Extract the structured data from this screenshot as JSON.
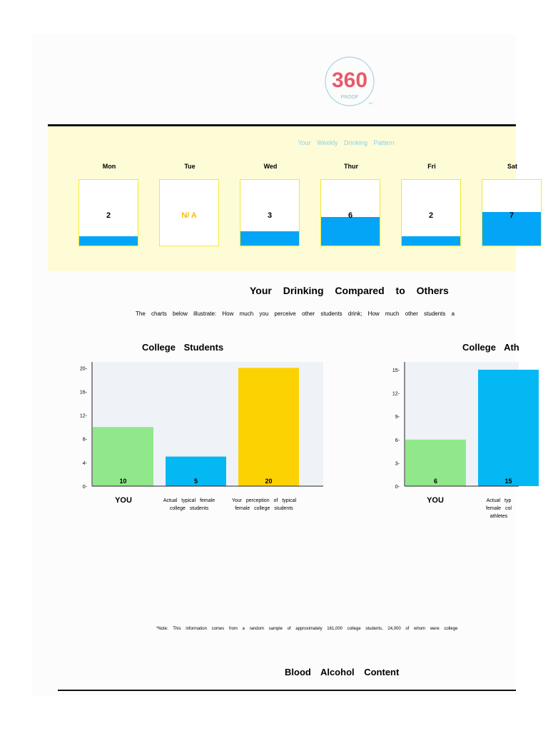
{
  "logo": {
    "text": "360",
    "subtext": "PROOF",
    "tm": "TM",
    "colors": [
      "#e85a6a",
      "#5ac4c4",
      "#a8d4e6"
    ]
  },
  "weekly": {
    "title": "Your Weekly Drinking Pattern",
    "max": 7,
    "days": [
      {
        "label": "Mon",
        "value": 2,
        "display": "2"
      },
      {
        "label": "Tue",
        "value": null,
        "display": "N/ A"
      },
      {
        "label": "Wed",
        "value": 3,
        "display": "3"
      },
      {
        "label": "Thur",
        "value": 6,
        "display": "6"
      },
      {
        "label": "Fri",
        "value": 2,
        "display": "2"
      },
      {
        "label": "Sat",
        "value": 7,
        "display": "7"
      }
    ]
  },
  "compare": {
    "title": "Your Drinking Compared to Others",
    "description": "The charts below illustrate: How much you perceive other students drink; How much other students a"
  },
  "chart_data": [
    {
      "type": "bar",
      "title": "College Students",
      "categories": [
        "YOU",
        "Actual typical female college students",
        "Your perception of typical female college students"
      ],
      "values": [
        10,
        5,
        20
      ],
      "colors": [
        "#90e88a",
        "#04b8f4",
        "#fcd203"
      ],
      "yticks": [
        "0-",
        "4-",
        "8-",
        "12-",
        "16-",
        "20-"
      ],
      "ylim": [
        0,
        21
      ],
      "grid": false
    },
    {
      "type": "bar",
      "title": "College Ath",
      "categories": [
        "YOU",
        "Actual typ female col athletes"
      ],
      "values": [
        6,
        15
      ],
      "colors": [
        "#90e88a",
        "#04b8f4"
      ],
      "yticks": [
        "0-",
        "3-",
        "6-",
        "9-",
        "12-",
        "15-"
      ],
      "ylim": [
        0,
        16
      ],
      "grid": false
    }
  ],
  "note": "*Note: This information comes from a random sample of approximately 161,000 college students, 24,000 of whom were college",
  "bac": {
    "title": "Blood Alcohol Content"
  }
}
